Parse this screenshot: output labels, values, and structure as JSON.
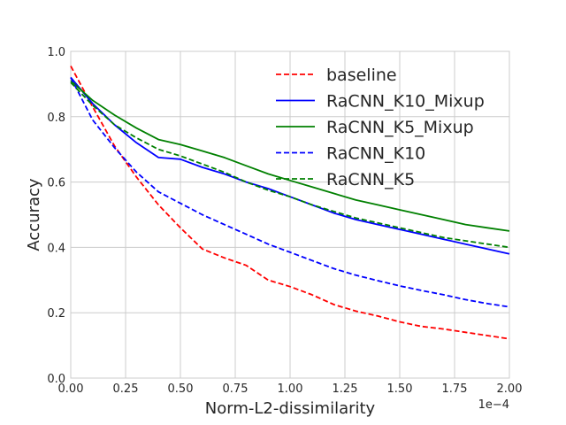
{
  "chart_data": {
    "type": "line",
    "xlabel": "Norm-L2-dissimilarity",
    "ylabel": "Accuracy",
    "x_offset_label": "1e−4",
    "xlim": [
      0,
      2.0
    ],
    "ylim": [
      0,
      1.0
    ],
    "x_ticks": [
      0.0,
      0.25,
      0.5,
      0.75,
      1.0,
      1.25,
      1.5,
      1.75,
      2.0
    ],
    "x_tick_labels": [
      "0.00",
      "0.25",
      "0.50",
      "0.75",
      "1.00",
      "1.25",
      "1.50",
      "1.75",
      "2.00"
    ],
    "y_ticks": [
      0.0,
      0.2,
      0.4,
      0.6,
      0.8,
      1.0
    ],
    "y_tick_labels": [
      "0.0",
      "0.2",
      "0.4",
      "0.6",
      "0.8",
      "1.0"
    ],
    "grid": true,
    "legend_position": "top-right",
    "x": [
      0.0,
      0.1,
      0.2,
      0.3,
      0.4,
      0.5,
      0.6,
      0.7,
      0.8,
      0.9,
      1.0,
      1.1,
      1.2,
      1.3,
      1.4,
      1.5,
      1.6,
      1.7,
      1.8,
      1.9,
      2.0
    ],
    "series": [
      {
        "name": "baseline",
        "color": "#ff0000",
        "style": "dashed",
        "values": [
          0.955,
          0.83,
          0.71,
          0.615,
          0.53,
          0.46,
          0.395,
          0.368,
          0.345,
          0.3,
          0.28,
          0.255,
          0.225,
          0.205,
          0.19,
          0.172,
          0.158,
          0.15,
          0.14,
          0.13,
          0.12
        ]
      },
      {
        "name": "RaCNN_K10_Mixup",
        "color": "#0000ff",
        "style": "solid",
        "values": [
          0.92,
          0.84,
          0.775,
          0.72,
          0.675,
          0.67,
          0.645,
          0.625,
          0.6,
          0.58,
          0.555,
          0.53,
          0.505,
          0.485,
          0.47,
          0.455,
          0.44,
          0.425,
          0.41,
          0.395,
          0.38
        ]
      },
      {
        "name": "RaCNN_K5_Mixup",
        "color": "#008000",
        "style": "solid",
        "values": [
          0.91,
          0.85,
          0.805,
          0.765,
          0.73,
          0.715,
          0.695,
          0.675,
          0.65,
          0.625,
          0.605,
          0.585,
          0.565,
          0.545,
          0.53,
          0.515,
          0.5,
          0.485,
          0.47,
          0.46,
          0.45
        ]
      },
      {
        "name": "RaCNN_K10",
        "color": "#0000ff",
        "style": "dashed",
        "values": [
          0.92,
          0.79,
          0.705,
          0.63,
          0.57,
          0.535,
          0.5,
          0.47,
          0.44,
          0.41,
          0.385,
          0.36,
          0.335,
          0.315,
          0.298,
          0.282,
          0.268,
          0.255,
          0.24,
          0.228,
          0.218
        ]
      },
      {
        "name": "RaCNN_K5",
        "color": "#008000",
        "style": "dashed",
        "values": [
          0.905,
          0.835,
          0.775,
          0.735,
          0.7,
          0.68,
          0.655,
          0.63,
          0.6,
          0.575,
          0.555,
          0.53,
          0.51,
          0.49,
          0.475,
          0.46,
          0.445,
          0.43,
          0.42,
          0.41,
          0.4
        ]
      }
    ]
  }
}
